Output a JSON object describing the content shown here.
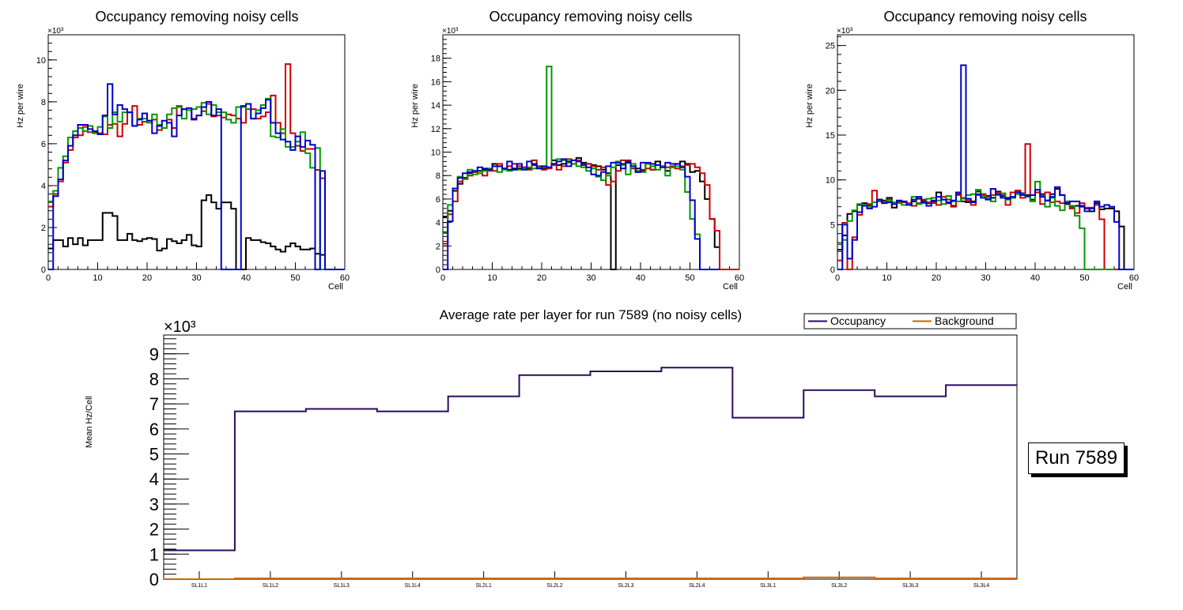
{
  "chart_data": [
    {
      "type": "line",
      "style": "step-histogram",
      "title": "Occupancy removing noisy cells",
      "xlabel": "Cell",
      "ylabel": "Hz per wire",
      "y_multiplier": "×10³",
      "xlim": [
        0,
        60
      ],
      "ylim": [
        0,
        11.2
      ],
      "xticks": [
        0,
        10,
        20,
        30,
        40,
        50,
        60
      ],
      "yticks": [
        0,
        2,
        4,
        6,
        8,
        10
      ],
      "series": [
        {
          "name": "black",
          "color": "#000000",
          "values": [
            1.0,
            1.4,
            1.4,
            1.1,
            1.5,
            1.2,
            1.5,
            1.15,
            1.4,
            1.4,
            1.4,
            2.7,
            2.7,
            2.55,
            1.4,
            1.4,
            1.7,
            1.4,
            1.35,
            1.45,
            1.5,
            1.45,
            0.9,
            1.0,
            1.45,
            1.35,
            1.25,
            1.4,
            1.65,
            1.15,
            1.1,
            3.3,
            3.55,
            3.2,
            2.9,
            3.2,
            3.2,
            2.9,
            0,
            0,
            1.5,
            1.4,
            1.4,
            1.3,
            1.25,
            1.1,
            0.95,
            0.85,
            1.1,
            1.25,
            1.1,
            0.95,
            0.95,
            1.0,
            0.75,
            0.7,
            0,
            0,
            0,
            0
          ]
        },
        {
          "name": "red",
          "color": "#cc0000",
          "values": [
            3.0,
            3.6,
            4.2,
            5.1,
            5.7,
            6.3,
            6.4,
            6.8,
            6.55,
            6.55,
            6.5,
            6.45,
            6.9,
            6.95,
            6.35,
            6.95,
            7.5,
            7.8,
            6.9,
            7.05,
            7.1,
            7.15,
            6.65,
            6.75,
            7.15,
            6.75,
            7.8,
            7.65,
            7.6,
            7.2,
            7.35,
            7.55,
            7.9,
            7.3,
            7.35,
            7.25,
            7.4,
            7.35,
            7.2,
            7.0,
            7.65,
            7.65,
            7.2,
            7.3,
            7.5,
            8.3,
            7.0,
            6.5,
            9.8,
            6.5,
            5.9,
            5.65,
            5.75,
            5.75,
            4.75,
            4.35,
            0,
            0,
            0,
            0
          ]
        },
        {
          "name": "green",
          "color": "#009900",
          "values": [
            3.25,
            3.75,
            4.85,
            5.4,
            6.3,
            6.6,
            6.75,
            6.6,
            6.85,
            6.5,
            6.8,
            7.3,
            6.75,
            7.5,
            7.05,
            7.5,
            7.5,
            6.85,
            7.2,
            7.2,
            7.0,
            7.4,
            6.9,
            6.75,
            7.4,
            7.7,
            7.75,
            7.2,
            7.6,
            7.65,
            7.75,
            7.95,
            7.4,
            7.85,
            7.5,
            7.5,
            7.15,
            7.0,
            7.75,
            7.75,
            7.65,
            7.2,
            7.6,
            7.85,
            8.15,
            6.35,
            6.3,
            6.7,
            5.85,
            5.85,
            6.1,
            6.55,
            5.55,
            4.85,
            5.8,
            0,
            0,
            0,
            0,
            0
          ]
        },
        {
          "name": "blue",
          "color": "#0000cc",
          "values": [
            0,
            3.5,
            4.3,
            5.2,
            5.9,
            6.4,
            6.9,
            6.9,
            6.7,
            6.6,
            6.45,
            7.35,
            8.85,
            7.4,
            7.85,
            7.65,
            7.5,
            6.85,
            7.15,
            7.45,
            7.1,
            6.5,
            6.85,
            7.1,
            7.0,
            6.35,
            7.35,
            7.65,
            7.7,
            7.15,
            7.35,
            7.75,
            8.0,
            7.35,
            7.65,
            0,
            0,
            0,
            0,
            7.8,
            7.9,
            7.2,
            7.45,
            7.7,
            8.1,
            7.0,
            6.5,
            6.2,
            6.1,
            5.7,
            6.35,
            5.85,
            6.15,
            5.95,
            0,
            4.7,
            0,
            0,
            0,
            0
          ]
        }
      ]
    },
    {
      "type": "line",
      "style": "step-histogram",
      "title": "Occupancy removing noisy cells",
      "xlabel": "Cell",
      "ylabel": "Hz per wire",
      "y_multiplier": "×10³",
      "xlim": [
        0,
        60
      ],
      "ylim": [
        0,
        20
      ],
      "xticks": [
        0,
        10,
        20,
        30,
        40,
        50,
        60
      ],
      "yticks": [
        0,
        2,
        4,
        6,
        8,
        10,
        12,
        14,
        16,
        18
      ],
      "series": [
        {
          "name": "black",
          "color": "#000000",
          "values": [
            4.5,
            5.0,
            6.7,
            7.3,
            7.8,
            8.2,
            8.3,
            8.4,
            8.5,
            8.5,
            9.0,
            8.8,
            8.6,
            8.5,
            8.6,
            8.6,
            8.7,
            8.6,
            8.9,
            8.8,
            8.6,
            8.7,
            9.3,
            8.9,
            9.0,
            9.2,
            9.3,
            9.5,
            9.1,
            9.0,
            8.9,
            8.8,
            8.5,
            8.2,
            0,
            8.9,
            9.0,
            9.1,
            8.8,
            8.6,
            8.4,
            9.0,
            8.5,
            9.2,
            8.8,
            8.4,
            8.7,
            9.0,
            9.2,
            9.0,
            8.3,
            8.4,
            7.5,
            6.0,
            4.3,
            1.9,
            0,
            0,
            0,
            0
          ]
        },
        {
          "name": "red",
          "color": "#cc0000",
          "values": [
            2.2,
            4.7,
            5.8,
            7.5,
            7.7,
            8.0,
            8.3,
            8.2,
            8.0,
            8.4,
            8.4,
            9.0,
            8.6,
            8.8,
            9.0,
            8.8,
            8.7,
            8.5,
            9.3,
            8.8,
            8.5,
            8.6,
            8.9,
            8.5,
            8.8,
            9.4,
            9.0,
            9.3,
            9.0,
            9.0,
            8.8,
            8.5,
            8.7,
            7.2,
            7.5,
            8.4,
            9.3,
            9.3,
            8.6,
            8.3,
            8.5,
            8.6,
            8.5,
            8.9,
            8.8,
            8.7,
            8.8,
            8.6,
            8.8,
            8.9,
            9.0,
            8.7,
            8.2,
            7.2,
            4.3,
            3.3,
            0,
            0,
            0,
            0
          ]
        },
        {
          "name": "green",
          "color": "#009900",
          "values": [
            3.1,
            5.5,
            6.9,
            7.9,
            7.7,
            8.5,
            8.1,
            8.2,
            8.4,
            8.6,
            8.8,
            8.3,
            8.5,
            8.4,
            8.5,
            8.5,
            8.6,
            8.7,
            8.6,
            8.7,
            8.7,
            17.3,
            9.0,
            9.4,
            9.3,
            9.1,
            9.0,
            8.8,
            8.7,
            8.4,
            8.6,
            7.9,
            7.6,
            8.0,
            8.7,
            9.2,
            8.9,
            8.1,
            9.0,
            8.4,
            8.3,
            9.0,
            8.8,
            8.5,
            8.8,
            8.0,
            8.7,
            8.8,
            8.5,
            6.6,
            4.3,
            3.0,
            0,
            0,
            0,
            0
          ]
        },
        {
          "name": "blue",
          "color": "#0000cc",
          "values": [
            0,
            4.1,
            6.9,
            7.8,
            8.2,
            8.3,
            8.4,
            8.7,
            8.6,
            8.5,
            8.8,
            8.8,
            8.6,
            9.2,
            8.5,
            9.0,
            8.5,
            9.2,
            9.0,
            8.6,
            8.8,
            8.7,
            9.0,
            9.2,
            9.4,
            8.8,
            9.3,
            9.2,
            8.9,
            8.7,
            8.1,
            8.0,
            8.3,
            8.8,
            9.1,
            9.1,
            8.6,
            9.2,
            8.8,
            8.3,
            9.1,
            9.1,
            9.0,
            8.9,
            8.7,
            9.1,
            9.0,
            9.0,
            8.7,
            7.9,
            5.9,
            2.6,
            0,
            0,
            0,
            0
          ]
        }
      ]
    },
    {
      "type": "line",
      "style": "step-histogram",
      "title": "Occupancy removing noisy cells",
      "xlabel": "Cell",
      "ylabel": "Hz per wire",
      "y_multiplier": "×10³",
      "xlim": [
        0,
        60
      ],
      "ylim": [
        0,
        26.2
      ],
      "xticks": [
        0,
        10,
        20,
        30,
        40,
        50,
        60
      ],
      "yticks": [
        0,
        5,
        10,
        15,
        20,
        25
      ],
      "series": [
        {
          "name": "black",
          "color": "#000000",
          "values": [
            2.2,
            3.8,
            6.2,
            6.5,
            7.2,
            7.4,
            7.2,
            7.5,
            7.8,
            7.7,
            8.0,
            6.9,
            7.6,
            7.5,
            7.3,
            7.6,
            7.9,
            7.7,
            7.4,
            7.6,
            8.6,
            7.8,
            7.4,
            7.1,
            8.4,
            7.6,
            7.5,
            7.6,
            8.7,
            8.4,
            8.2,
            8.0,
            8.7,
            8.2,
            8.0,
            8.0,
            8.8,
            8.5,
            8.3,
            7.8,
            8.9,
            8.4,
            7.7,
            8.4,
            9.0,
            8.3,
            7.3,
            7.0,
            7.1,
            7.1,
            6.8,
            6.5,
            7.4,
            6.7,
            6.8,
            6.8,
            6.5,
            4.8,
            0,
            0
          ]
        },
        {
          "name": "red",
          "color": "#cc0000",
          "values": [
            1.0,
            5.2,
            0,
            3.6,
            6.1,
            7.2,
            7.3,
            8.8,
            7.6,
            7.6,
            7.8,
            7.3,
            7.5,
            7.5,
            7.4,
            7.1,
            7.4,
            7.8,
            7.5,
            7.4,
            7.2,
            8.1,
            7.8,
            7.0,
            8.3,
            8.0,
            7.7,
            7.2,
            8.3,
            8.4,
            8.1,
            8.3,
            8.6,
            8.3,
            7.2,
            8.6,
            8.8,
            8.0,
            14.0,
            8.3,
            8.6,
            7.3,
            8.6,
            7.5,
            7.6,
            7.4,
            7.5,
            6.8,
            6.3,
            7.4,
            6.9,
            6.9,
            7.2,
            5.6,
            0,
            0,
            0,
            0,
            0,
            0
          ]
        },
        {
          "name": "green",
          "color": "#009900",
          "values": [
            2.8,
            3.3,
            5.4,
            6.6,
            7.3,
            7.2,
            7.0,
            7.5,
            7.7,
            7.5,
            7.7,
            7.5,
            7.4,
            7.2,
            7.3,
            8.1,
            7.3,
            7.4,
            7.9,
            8.0,
            7.7,
            7.3,
            8.2,
            7.6,
            7.6,
            7.9,
            8.3,
            8.4,
            8.9,
            8.2,
            7.9,
            7.6,
            8.3,
            8.5,
            7.8,
            8.0,
            8.4,
            8.4,
            8.1,
            7.6,
            9.8,
            8.2,
            7.0,
            8.0,
            7.1,
            6.6,
            7.6,
            7.1,
            6.0,
            4.6,
            0,
            0,
            0,
            0,
            0,
            0
          ]
        },
        {
          "name": "blue",
          "color": "#0000cc",
          "values": [
            0,
            5.0,
            1.2,
            3.3,
            6.4,
            7.1,
            6.8,
            7.0,
            7.8,
            7.4,
            7.5,
            7.3,
            7.7,
            7.6,
            7.2,
            7.8,
            8.1,
            7.5,
            7.1,
            7.7,
            8.1,
            7.8,
            7.5,
            7.7,
            8.6,
            22.8,
            7.9,
            7.5,
            8.4,
            8.0,
            7.8,
            9.0,
            8.4,
            8.0,
            7.9,
            8.1,
            8.6,
            8.3,
            8.2,
            8.3,
            8.9,
            8.1,
            7.7,
            8.1,
            9.2,
            8.3,
            7.4,
            7.6,
            7.6,
            7.0,
            6.5,
            6.8,
            7.6,
            7.0,
            7.2,
            7.0,
            5.3,
            0,
            0,
            0
          ]
        }
      ]
    },
    {
      "type": "line",
      "style": "step-histogram",
      "title": "Average rate per layer for run 7589 (no noisy cells)",
      "xlabel": "",
      "ylabel": "Mean Hz/Cell",
      "y_multiplier": "×10³",
      "ylim": [
        0,
        9.75
      ],
      "yticks": [
        0,
        1,
        2,
        3,
        4,
        5,
        6,
        7,
        8,
        9
      ],
      "categories": [
        "SL1L1",
        "SL1L2",
        "SL1L3",
        "SL1L4",
        "SL2L1",
        "SL2L2",
        "SL2L3",
        "SL2L4",
        "SL3L1",
        "SL3L2",
        "SL3L3",
        "SL3L4"
      ],
      "series": [
        {
          "name": "Occupancy",
          "color": "#2b0a5f",
          "values": [
            1.15,
            6.7,
            6.8,
            6.7,
            7.3,
            8.15,
            8.3,
            8.45,
            6.45,
            7.55,
            7.3,
            7.75
          ]
        },
        {
          "name": "Background",
          "color": "#cc6600",
          "values": [
            0.0,
            0.03,
            0.03,
            0.03,
            0.03,
            0.03,
            0.03,
            0.03,
            0.03,
            0.07,
            0.03,
            0.03
          ]
        }
      ],
      "legend": {
        "placement": "top-right",
        "entries": [
          "Occupancy",
          "Background"
        ]
      },
      "annotation": "Run 7589"
    }
  ]
}
